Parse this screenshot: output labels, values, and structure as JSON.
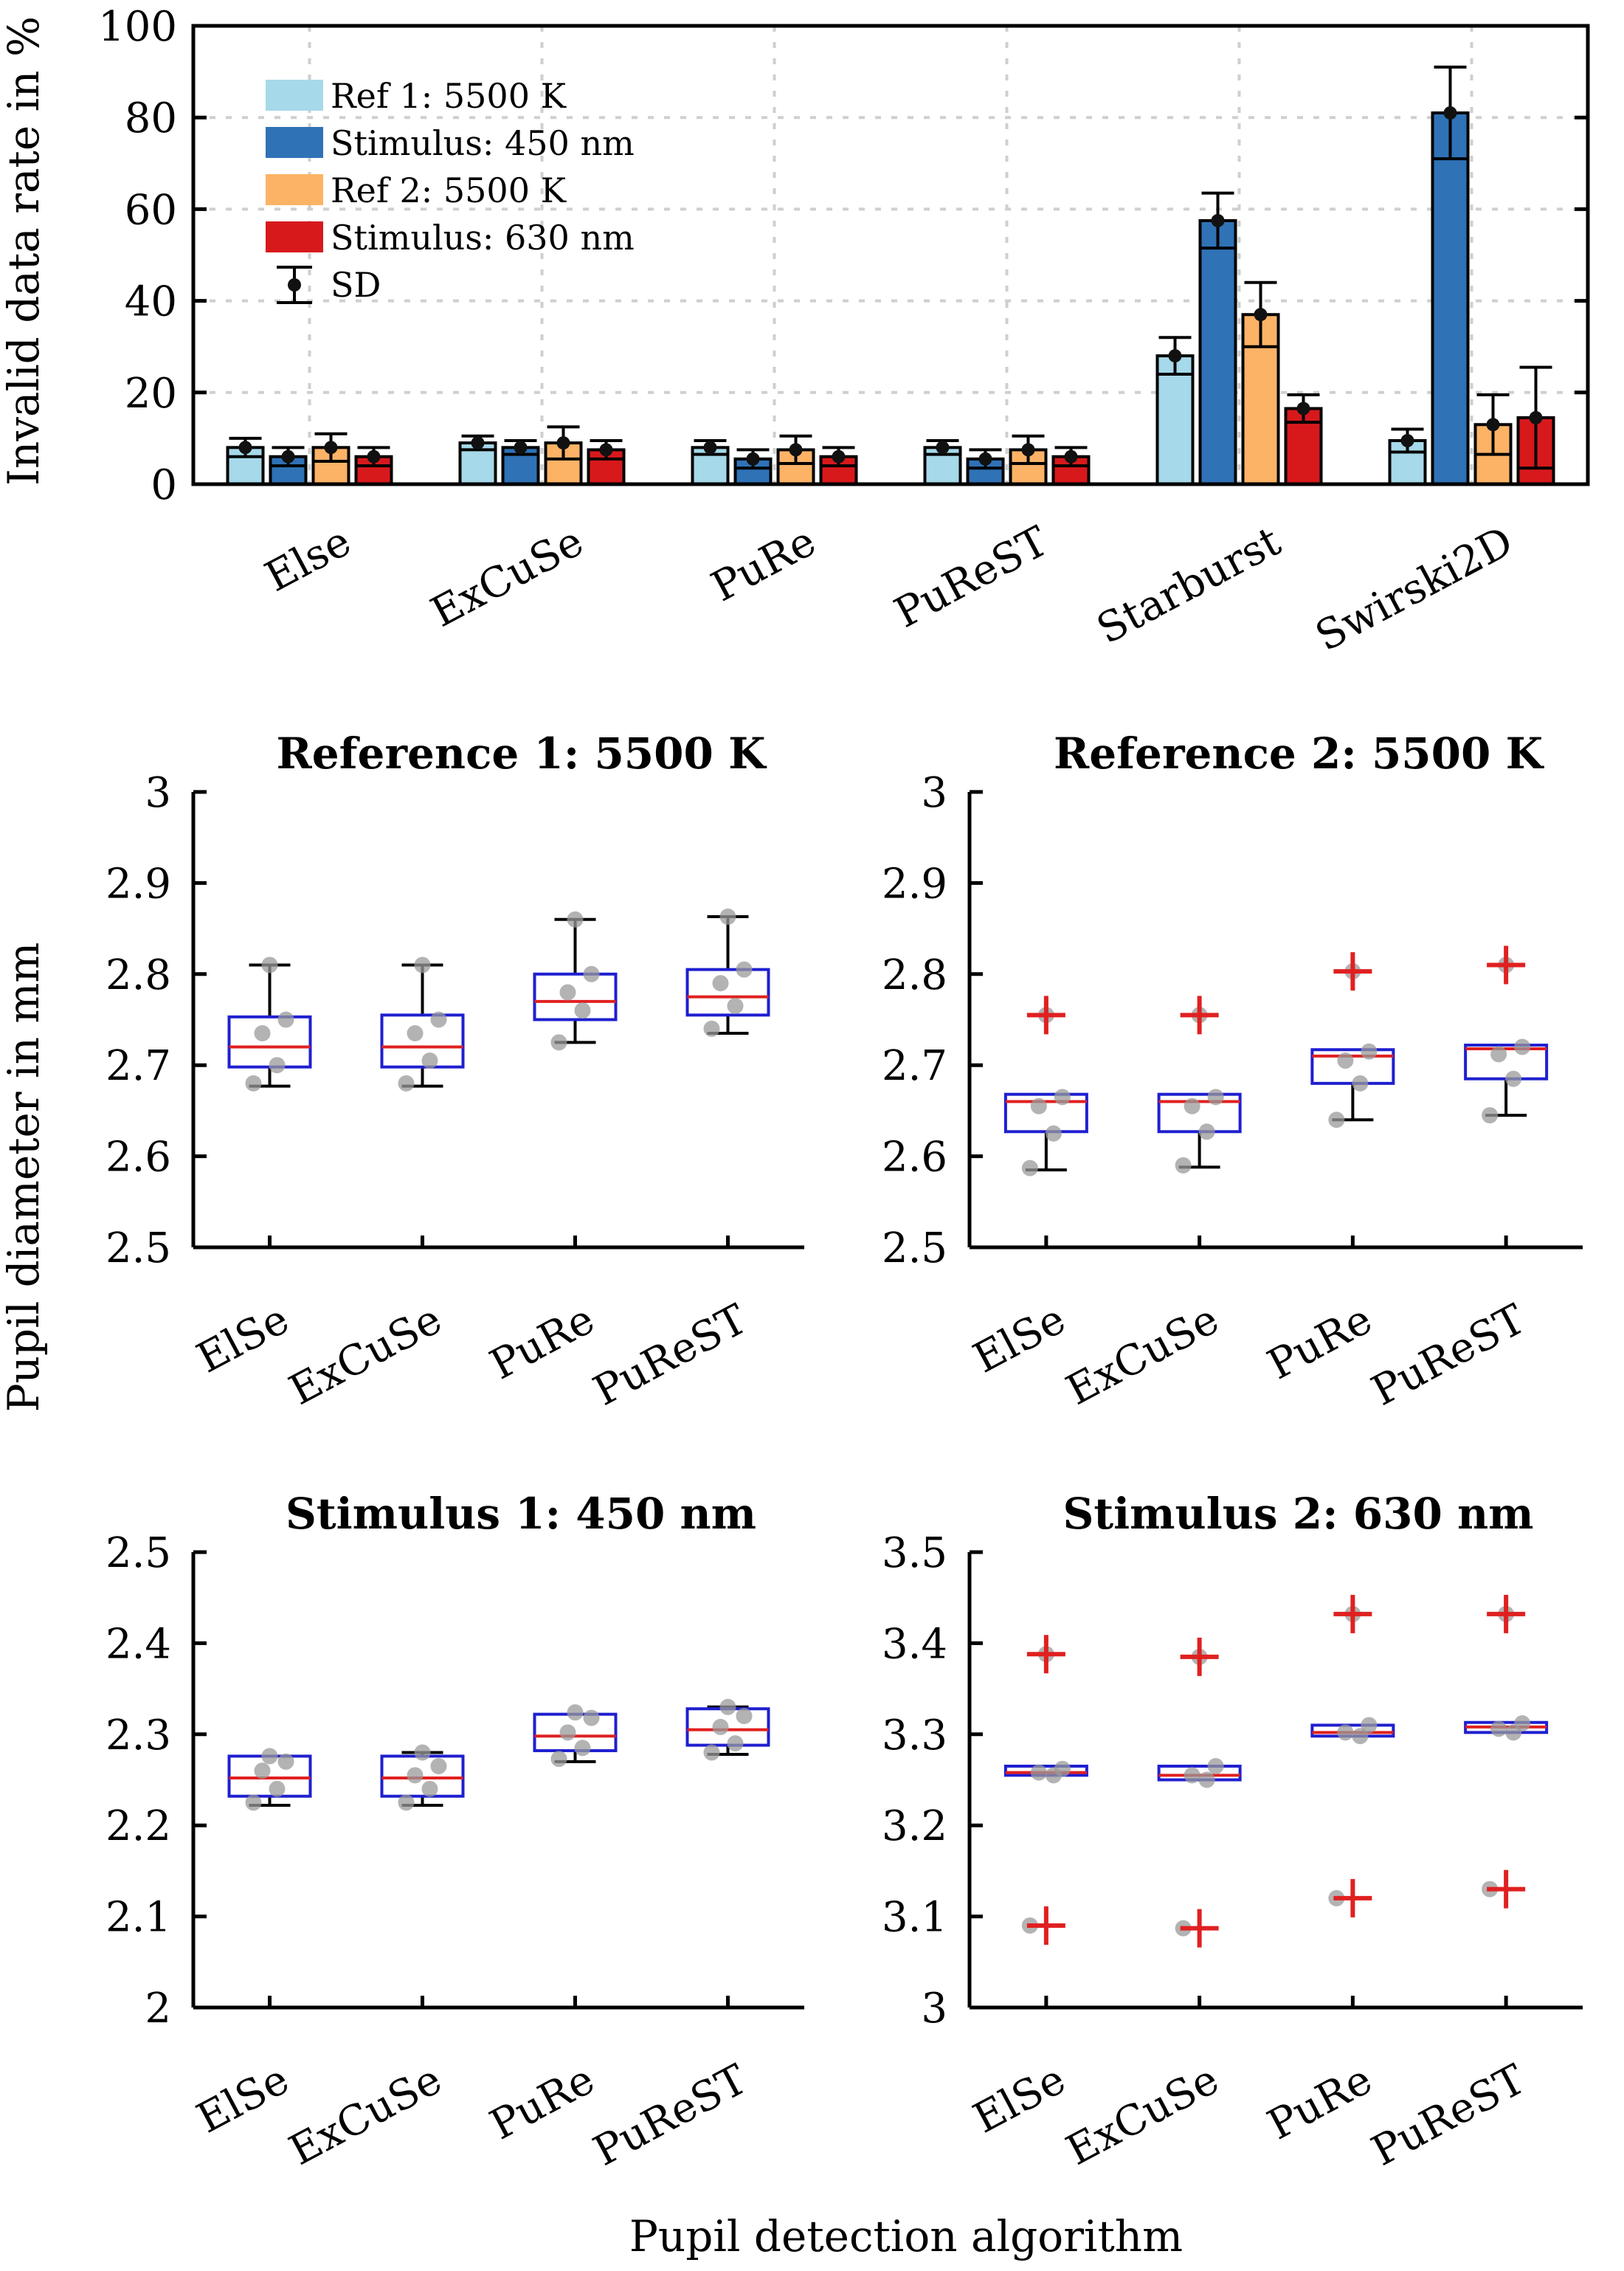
{
  "chart_data": [
    {
      "type": "bar",
      "title": "",
      "ylabel": "Invalid data rate in %",
      "xlabel": "",
      "ylim": [
        0,
        100
      ],
      "yticks": [
        0,
        20,
        40,
        60,
        80,
        100
      ],
      "grid": true,
      "legend_position": "top-left",
      "categories": [
        "Else",
        "ExCuSe",
        "PuRe",
        "PuReST",
        "Starburst",
        "Swirski2D"
      ],
      "series": [
        {
          "name": "Ref 1: 5500 K",
          "color": "#a6d9ea",
          "values": [
            8,
            9,
            8,
            8,
            28,
            9.5
          ],
          "sd": [
            2,
            1.5,
            1.5,
            1.5,
            4,
            2.5
          ]
        },
        {
          "name": "Stimulus: 450 nm",
          "color": "#2f72b6",
          "values": [
            6,
            8,
            5.5,
            5.5,
            57.5,
            81
          ],
          "sd": [
            2,
            1.5,
            2,
            2,
            6,
            10
          ]
        },
        {
          "name": "Ref 2: 5500 K",
          "color": "#fdb366",
          "values": [
            8,
            9,
            7.5,
            7.5,
            37,
            13
          ],
          "sd": [
            3,
            3.5,
            3,
            3,
            7,
            6.5
          ]
        },
        {
          "name": "Stimulus: 630 nm",
          "color": "#d7191c",
          "values": [
            6,
            7.5,
            6,
            6,
            16.5,
            14.5
          ],
          "sd": [
            2,
            2,
            2,
            2,
            3,
            11
          ]
        }
      ],
      "sd_legend": "SD"
    },
    {
      "type": "box",
      "title": "Reference 1: 5500 K",
      "ylabel": "Pupil diameter in mm",
      "ylim": [
        2.5,
        3
      ],
      "yticks": [
        "2.5",
        "2.6",
        "2.7",
        "2.8",
        "2.9",
        "3"
      ],
      "categories": [
        "ElSe",
        "ExCuSe",
        "PuRe",
        "PuReST"
      ],
      "boxes": [
        {
          "wlo": 2.677,
          "q1": 2.698,
          "med": 2.72,
          "q3": 2.753,
          "whi": 2.81,
          "outliers": [],
          "points": [
            2.68,
            2.7,
            2.735,
            2.75,
            2.81
          ]
        },
        {
          "wlo": 2.677,
          "q1": 2.698,
          "med": 2.72,
          "q3": 2.755,
          "whi": 2.81,
          "outliers": [],
          "points": [
            2.68,
            2.705,
            2.735,
            2.75,
            2.81
          ]
        },
        {
          "wlo": 2.725,
          "q1": 2.75,
          "med": 2.77,
          "q3": 2.8,
          "whi": 2.86,
          "outliers": [],
          "points": [
            2.725,
            2.76,
            2.78,
            2.8,
            2.86
          ]
        },
        {
          "wlo": 2.735,
          "q1": 2.755,
          "med": 2.775,
          "q3": 2.805,
          "whi": 2.863,
          "outliers": [],
          "points": [
            2.74,
            2.765,
            2.79,
            2.805,
            2.863
          ]
        }
      ]
    },
    {
      "type": "box",
      "title": "Reference 2: 5500 K",
      "ylabel": "",
      "ylim": [
        2.5,
        3
      ],
      "yticks": [
        "2.5",
        "2.6",
        "2.7",
        "2.8",
        "2.9",
        "3"
      ],
      "categories": [
        "ElSe",
        "ExCuSe",
        "PuRe",
        "PuReST"
      ],
      "boxes": [
        {
          "wlo": 2.585,
          "q1": 2.627,
          "med": 2.66,
          "q3": 2.668,
          "whi": 2.668,
          "outliers": [
            2.755
          ],
          "points": [
            2.587,
            2.625,
            2.655,
            2.665,
            2.755
          ]
        },
        {
          "wlo": 2.588,
          "q1": 2.627,
          "med": 2.66,
          "q3": 2.668,
          "whi": 2.668,
          "outliers": [
            2.755
          ],
          "points": [
            2.59,
            2.627,
            2.655,
            2.665,
            2.755
          ]
        },
        {
          "wlo": 2.64,
          "q1": 2.68,
          "med": 2.71,
          "q3": 2.717,
          "whi": 2.717,
          "outliers": [
            2.803
          ],
          "points": [
            2.64,
            2.68,
            2.705,
            2.715,
            2.803
          ]
        },
        {
          "wlo": 2.645,
          "q1": 2.685,
          "med": 2.718,
          "q3": 2.722,
          "whi": 2.722,
          "outliers": [
            2.81
          ],
          "points": [
            2.645,
            2.685,
            2.712,
            2.72,
            2.81
          ]
        }
      ]
    },
    {
      "type": "box",
      "title": "Stimulus 1: 450 nm",
      "ylabel": "",
      "ylim": [
        2,
        2.5
      ],
      "yticks": [
        "2",
        "2.1",
        "2.2",
        "2.3",
        "2.4",
        "2.5"
      ],
      "categories": [
        "ElSe",
        "ExCuSe",
        "PuRe",
        "PuReST"
      ],
      "boxes": [
        {
          "wlo": 2.222,
          "q1": 2.232,
          "med": 2.252,
          "q3": 2.276,
          "whi": 2.276,
          "outliers": [],
          "points": [
            2.225,
            2.24,
            2.26,
            2.27,
            2.276
          ]
        },
        {
          "wlo": 2.222,
          "q1": 2.232,
          "med": 2.252,
          "q3": 2.276,
          "whi": 2.28,
          "outliers": [],
          "points": [
            2.225,
            2.24,
            2.255,
            2.265,
            2.28
          ]
        },
        {
          "wlo": 2.27,
          "q1": 2.282,
          "med": 2.298,
          "q3": 2.322,
          "whi": 2.322,
          "outliers": [],
          "points": [
            2.273,
            2.285,
            2.302,
            2.318,
            2.324
          ]
        },
        {
          "wlo": 2.278,
          "q1": 2.288,
          "med": 2.305,
          "q3": 2.328,
          "whi": 2.33,
          "outliers": [],
          "points": [
            2.28,
            2.29,
            2.308,
            2.32,
            2.33
          ]
        }
      ]
    },
    {
      "type": "box",
      "title": "Stimulus 2: 630 nm",
      "ylabel": "",
      "ylim": [
        3,
        3.5
      ],
      "yticks": [
        "3",
        "3.1",
        "3.2",
        "3.3",
        "3.4",
        "3.5"
      ],
      "categories": [
        "ElSe",
        "ExCuSe",
        "PuRe",
        "PuReST"
      ],
      "boxes": [
        {
          "wlo": 3.255,
          "q1": 3.255,
          "med": 3.258,
          "q3": 3.265,
          "whi": 3.265,
          "outliers": [
            3.09,
            3.388
          ],
          "points": [
            3.09,
            3.255,
            3.258,
            3.262,
            3.388
          ]
        },
        {
          "wlo": 3.25,
          "q1": 3.25,
          "med": 3.255,
          "q3": 3.265,
          "whi": 3.265,
          "outliers": [
            3.087,
            3.385
          ],
          "points": [
            3.087,
            3.25,
            3.255,
            3.265,
            3.385
          ]
        },
        {
          "wlo": 3.298,
          "q1": 3.298,
          "med": 3.302,
          "q3": 3.31,
          "whi": 3.31,
          "outliers": [
            3.12,
            3.432
          ],
          "points": [
            3.12,
            3.298,
            3.302,
            3.31,
            3.432
          ]
        },
        {
          "wlo": 3.302,
          "q1": 3.302,
          "med": 3.308,
          "q3": 3.313,
          "whi": 3.313,
          "outliers": [
            3.13,
            3.432
          ],
          "points": [
            3.13,
            3.302,
            3.306,
            3.312,
            3.432
          ]
        }
      ]
    }
  ],
  "shared_ylabel": "Pupil diameter in mm",
  "xlabel": "Pupil detection algorithm"
}
